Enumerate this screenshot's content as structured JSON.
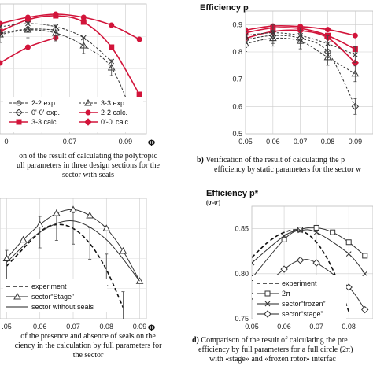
{
  "captions": {
    "a": [
      "on of the result of calculating the polytropic",
      "ull parameters in three design sections for the",
      "sector with seals"
    ],
    "b_bold": "b)",
    "b": [
      " Verification of the result of calculating the p",
      "efficiency by static parameters for the sector w"
    ],
    "c": [
      "of the presence and absence of seals on the",
      "ciency in the calculation by full parameters for",
      "the sector"
    ],
    "d_bold": "d)",
    "d": [
      " Comparison of the result of calculating the pre",
      "efficiency by full parameters for a full circle (2π)",
      "with «stage» and «frozen rotor» interfac"
    ]
  },
  "chart_data": [
    {
      "id": "a",
      "type": "line",
      "title": "",
      "xlabel": "Φ",
      "ylabel": "",
      "x_ticks": [
        "0",
        "0.07",
        "0.09"
      ],
      "legend": [
        "2-2 exp.",
        "3-3 exp.",
        "0'-0' exp.",
        "2-2 calc.",
        "3-3 calc.",
        "0'-0' calc."
      ],
      "series": [
        {
          "name": "2-2 calc.",
          "color": "#d2143a",
          "x": [
            0.045,
            0.055,
            0.065,
            0.075,
            0.085,
            0.095
          ],
          "y": [
            0.88,
            0.888,
            0.892,
            0.888,
            0.878,
            0.86
          ]
        },
        {
          "name": "3-3 calc.",
          "color": "#d2143a",
          "x": [
            0.045,
            0.055,
            0.065,
            0.075,
            0.085,
            0.095
          ],
          "y": [
            0.87,
            0.885,
            0.89,
            0.882,
            0.85,
            0.79
          ]
        },
        {
          "name": "0'-0' calc.",
          "color": "#d2143a",
          "x": [
            0.045,
            0.055,
            0.065
          ],
          "y": [
            0.83,
            0.85,
            0.862
          ]
        },
        {
          "name": "2-2 exp.",
          "color": "#333333",
          "x": [
            0.045,
            0.055,
            0.065,
            0.075,
            0.085
          ],
          "y": [
            0.876,
            0.88,
            0.876,
            0.862,
            0.832
          ]
        },
        {
          "name": "3-3 exp.",
          "color": "#333333",
          "x": [
            0.045,
            0.055,
            0.065,
            0.075,
            0.085,
            0.093
          ],
          "y": [
            0.866,
            0.872,
            0.868,
            0.852,
            0.824,
            0.76
          ]
        },
        {
          "name": "0'-0' exp.",
          "color": "#333333",
          "x": [
            0.045,
            0.055,
            0.065
          ],
          "y": [
            0.868,
            0.873,
            0.872
          ]
        }
      ]
    },
    {
      "id": "b",
      "type": "line",
      "title": "Efficiency p",
      "xlabel": "",
      "ylabel": "Efficiency p",
      "x_ticks": [
        "0.05",
        "0.06",
        "0.07",
        "0.08",
        "0.09"
      ],
      "y_ticks": [
        "0.5",
        "0.6",
        "0.7",
        "0.8",
        "0.9"
      ],
      "xlim": [
        0.05,
        0.095
      ],
      "ylim": [
        0.5,
        0.95
      ],
      "series": [
        {
          "name": "2-2 calc.",
          "color": "#d2143a",
          "x": [
            0.05,
            0.06,
            0.07,
            0.08,
            0.09
          ],
          "y": [
            0.88,
            0.895,
            0.893,
            0.882,
            0.86
          ]
        },
        {
          "name": "3-3 calc.",
          "color": "#d2143a",
          "x": [
            0.05,
            0.06,
            0.07,
            0.08,
            0.09
          ],
          "y": [
            0.87,
            0.888,
            0.886,
            0.86,
            0.81
          ]
        },
        {
          "name": "0'-0' calc.",
          "color": "#d2143a",
          "x": [
            0.05,
            0.06,
            0.07,
            0.08,
            0.09
          ],
          "y": [
            0.85,
            0.875,
            0.878,
            0.852,
            0.76
          ]
        },
        {
          "name": "2-2 exp.",
          "color": "#333333",
          "x": [
            0.05,
            0.06,
            0.07,
            0.08,
            0.09
          ],
          "y": [
            0.86,
            0.87,
            0.86,
            0.83,
            0.79
          ]
        },
        {
          "name": "3-3 exp.",
          "color": "#333333",
          "x": [
            0.05,
            0.06,
            0.07,
            0.08,
            0.09
          ],
          "y": [
            0.83,
            0.85,
            0.84,
            0.78,
            0.72
          ]
        },
        {
          "name": "0'-0' exp.",
          "color": "#333333",
          "x": [
            0.05,
            0.06,
            0.07,
            0.08,
            0.09
          ],
          "y": [
            0.845,
            0.86,
            0.85,
            0.8,
            0.6
          ]
        }
      ]
    },
    {
      "id": "c",
      "type": "line",
      "title": "",
      "xlabel": "Φ",
      "ylabel": "",
      "x_ticks": [
        ".05",
        "0.06",
        "0.07",
        "0.08",
        "0.09"
      ],
      "xlim": [
        0.05,
        0.09
      ],
      "ylim": [
        0.72,
        0.88
      ],
      "legend": [
        "experiment",
        "sector“Stage”",
        "sector without seals"
      ],
      "series": [
        {
          "name": "experiment",
          "color": "#111111",
          "dash": true,
          "x": [
            0.05,
            0.06,
            0.065,
            0.07,
            0.075,
            0.08,
            0.085
          ],
          "y": [
            0.79,
            0.835,
            0.845,
            0.84,
            0.82,
            0.785,
            0.735
          ]
        },
        {
          "name": "sector“Stage”",
          "color": "#333333",
          "x": [
            0.05,
            0.055,
            0.06,
            0.065,
            0.07,
            0.075,
            0.08,
            0.085,
            0.09
          ],
          "y": [
            0.8,
            0.825,
            0.845,
            0.86,
            0.865,
            0.857,
            0.84,
            0.81,
            0.77
          ]
        },
        {
          "name": "sector without seals",
          "color": "#333333",
          "x": [
            0.05,
            0.06,
            0.07,
            0.08,
            0.09
          ],
          "y": [
            0.795,
            0.835,
            0.85,
            0.825,
            0.77
          ]
        }
      ]
    },
    {
      "id": "d",
      "type": "line",
      "title": "Efficiency p*",
      "subtitle": "(0'-0')",
      "xlabel": "",
      "ylabel": "Efficiency p*",
      "x_ticks": [
        "0.05",
        "0.06",
        "0.07",
        "0.08"
      ],
      "y_ticks": [
        "0.75",
        "0.80",
        "0.85"
      ],
      "xlim": [
        0.05,
        0.085
      ],
      "ylim": [
        0.75,
        0.875
      ],
      "legend": [
        "experiment",
        "2π",
        "sector“frozen”",
        "sector“stage”"
      ],
      "series": [
        {
          "name": "experiment",
          "color": "#111111",
          "dash": true,
          "x": [
            0.05,
            0.055,
            0.06,
            0.065,
            0.07,
            0.075,
            0.08
          ],
          "y": [
            0.818,
            0.835,
            0.846,
            0.848,
            0.835,
            0.805,
            0.758
          ]
        },
        {
          "name": "2π",
          "color": "#333333",
          "x": [
            0.05,
            0.06,
            0.065,
            0.07,
            0.075,
            0.08,
            0.085
          ],
          "y": [
            0.795,
            0.838,
            0.849,
            0.851,
            0.846,
            0.835,
            0.82
          ]
        },
        {
          "name": "sector“frozen”",
          "color": "#333333",
          "x": [
            0.05,
            0.06,
            0.065,
            0.07,
            0.08,
            0.085
          ],
          "y": [
            0.812,
            0.842,
            0.848,
            0.846,
            0.822,
            0.8
          ]
        },
        {
          "name": "sector“stage”",
          "color": "#333333",
          "x": [
            0.05,
            0.06,
            0.065,
            0.07,
            0.08,
            0.085
          ],
          "y": [
            0.775,
            0.805,
            0.815,
            0.812,
            0.785,
            0.76
          ]
        }
      ]
    }
  ]
}
